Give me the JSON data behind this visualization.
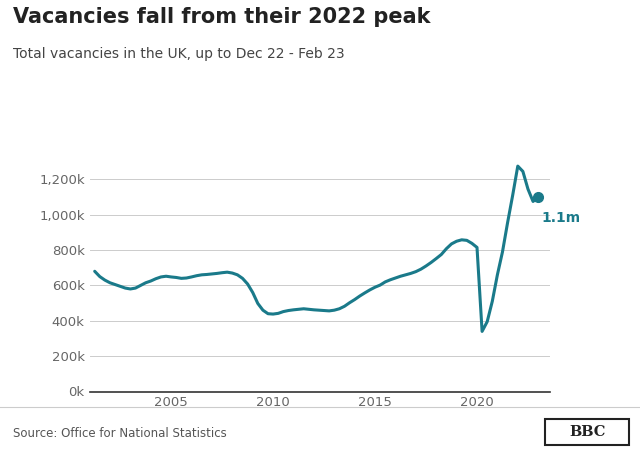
{
  "title": "Vacancies fall from their 2022 peak",
  "subtitle": "Total vacancies in the UK, up to Dec 22 - Feb 23",
  "source": "Source: Office for National Statistics",
  "line_color": "#1a7a8a",
  "dot_color": "#1a7a8a",
  "annotation": "1.1m",
  "annotation_color": "#1a7a8a",
  "background_color": "#ffffff",
  "ylim": [
    0,
    1400000
  ],
  "yticks": [
    0,
    200000,
    400000,
    600000,
    800000,
    1000000,
    1200000
  ],
  "ytick_labels": [
    "0k",
    "200k",
    "400k",
    "600k",
    "800k",
    "1,000k",
    "1,200k"
  ],
  "xtick_years": [
    2005,
    2010,
    2015,
    2020
  ],
  "xlim": [
    2001.0,
    2023.6
  ],
  "dates": [
    2001.25,
    2001.5,
    2001.75,
    2002.0,
    2002.25,
    2002.5,
    2002.75,
    2003.0,
    2003.25,
    2003.5,
    2003.75,
    2004.0,
    2004.25,
    2004.5,
    2004.75,
    2005.0,
    2005.25,
    2005.5,
    2005.75,
    2006.0,
    2006.25,
    2006.5,
    2006.75,
    2007.0,
    2007.25,
    2007.5,
    2007.75,
    2008.0,
    2008.25,
    2008.5,
    2008.75,
    2009.0,
    2009.25,
    2009.5,
    2009.75,
    2010.0,
    2010.25,
    2010.5,
    2010.75,
    2011.0,
    2011.25,
    2011.5,
    2011.75,
    2012.0,
    2012.25,
    2012.5,
    2012.75,
    2013.0,
    2013.25,
    2013.5,
    2013.75,
    2014.0,
    2014.25,
    2014.5,
    2014.75,
    2015.0,
    2015.25,
    2015.5,
    2015.75,
    2016.0,
    2016.25,
    2016.5,
    2016.75,
    2017.0,
    2017.25,
    2017.5,
    2017.75,
    2018.0,
    2018.25,
    2018.5,
    2018.75,
    2019.0,
    2019.25,
    2019.5,
    2019.75,
    2020.0,
    2020.25,
    2020.5,
    2020.75,
    2021.0,
    2021.25,
    2021.5,
    2021.75,
    2022.0,
    2022.25,
    2022.5,
    2022.75,
    2023.0
  ],
  "values": [
    680000,
    650000,
    630000,
    615000,
    605000,
    595000,
    585000,
    580000,
    585000,
    600000,
    615000,
    625000,
    638000,
    648000,
    652000,
    648000,
    645000,
    640000,
    642000,
    648000,
    655000,
    660000,
    662000,
    665000,
    668000,
    672000,
    675000,
    670000,
    660000,
    640000,
    608000,
    560000,
    498000,
    460000,
    440000,
    438000,
    442000,
    452000,
    458000,
    462000,
    465000,
    468000,
    465000,
    462000,
    460000,
    458000,
    456000,
    460000,
    468000,
    482000,
    502000,
    520000,
    540000,
    558000,
    575000,
    590000,
    602000,
    620000,
    632000,
    642000,
    652000,
    660000,
    668000,
    678000,
    692000,
    710000,
    730000,
    752000,
    775000,
    808000,
    835000,
    850000,
    858000,
    855000,
    838000,
    815000,
    340000,
    395000,
    510000,
    660000,
    790000,
    955000,
    1110000,
    1275000,
    1245000,
    1145000,
    1075000,
    1100000
  ]
}
